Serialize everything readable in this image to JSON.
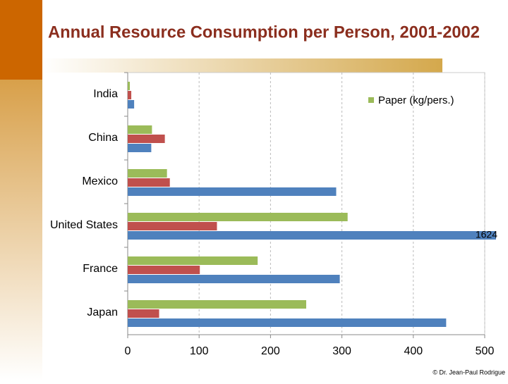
{
  "chart_data": {
    "type": "hbar",
    "title": "Annual Resource Consumption per Person, 2001-2002",
    "categories": [
      "India",
      "China",
      "Mexico",
      "United States",
      "France",
      "Japan"
    ],
    "series": [
      {
        "name": "Paper (kg/pers.)",
        "color": "#9bbb59",
        "values": [
          3,
          34,
          55,
          308,
          182,
          250
        ]
      },
      {
        "color": "#c0504d",
        "values": [
          5,
          52,
          59,
          125,
          101,
          44
        ]
      },
      {
        "color": "#4f81bd",
        "values": [
          9,
          33,
          292,
          1624,
          297,
          446
        ],
        "value_labels": [
          null,
          null,
          null,
          "1624",
          null,
          null
        ]
      }
    ],
    "xlim": [
      0,
      500
    ],
    "xticks": [
      0,
      100,
      200,
      300,
      400,
      500
    ],
    "grid": true,
    "legend": "top-right",
    "footer": "© Dr. Jean-Paul Rodrigue"
  }
}
